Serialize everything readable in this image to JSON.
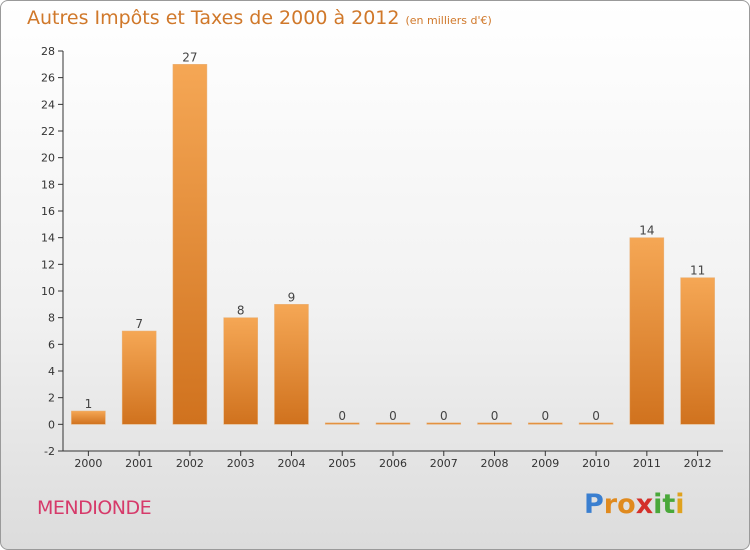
{
  "chart_data": {
    "type": "bar",
    "title": "Autres Impôts et Taxes de 2000 à 2012",
    "subtitle": "(en milliers d'€)",
    "categories": [
      "2000",
      "2001",
      "2002",
      "2003",
      "2004",
      "2005",
      "2006",
      "2007",
      "2008",
      "2009",
      "2010",
      "2011",
      "2012"
    ],
    "values": [
      1,
      7,
      27,
      8,
      9,
      0,
      0,
      0,
      0,
      0,
      0,
      14,
      11
    ],
    "data_labels": [
      "1",
      "7",
      "27",
      "8",
      "9",
      "0",
      "0",
      "0",
      "0",
      "0",
      "0",
      "14",
      "11"
    ],
    "ylim": [
      -2,
      28
    ],
    "yticks": [
      -2,
      0,
      2,
      4,
      6,
      8,
      10,
      12,
      14,
      16,
      18,
      20,
      22,
      24,
      26,
      28
    ],
    "grid": false,
    "xlabel": "",
    "ylabel": "",
    "bar_color_light": "#f5a755",
    "bar_color_dark": "#d0721e"
  },
  "footer": {
    "commune": "MENDIONDE",
    "logo_letters": [
      "P",
      "r",
      "o",
      "x",
      "i",
      "t",
      "i"
    ],
    "logo_colors": [
      "#3a7fd0",
      "#e08a1e",
      "#e08a1e",
      "#d4302a",
      "#4aa83a",
      "#4aa83a",
      "#e0a21e"
    ]
  },
  "colors": {
    "title": "#d0782a",
    "commune": "#d63a6a",
    "axis": "#333333"
  }
}
